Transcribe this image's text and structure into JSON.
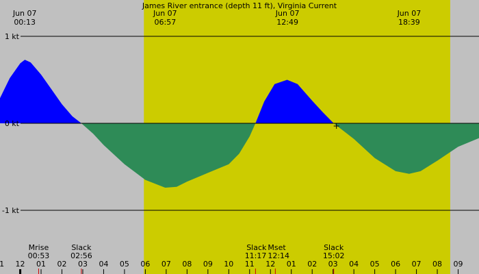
{
  "chart_data": {
    "type": "area",
    "title": "James River entrance (depth 11 ft), Virginia Current",
    "unit": "kt",
    "ylim": [
      -1.0,
      1.0
    ],
    "xlim_hours": [
      -0.97,
      22.0
    ],
    "y_ticks": [
      {
        "value": 1,
        "label": "1 kt"
      },
      {
        "value": 0,
        "label": "0 kt"
      },
      {
        "value": -1,
        "label": "-1 kt"
      }
    ],
    "daylight_hours": [
      5.93,
      20.62
    ],
    "top_labels": [
      {
        "date": "Jun 07",
        "time": "00:13",
        "hour": 0.217
      },
      {
        "date": "Jun 07",
        "time": "06:57",
        "hour": 6.95
      },
      {
        "date": "Jun 07",
        "time": "12:49",
        "hour": 12.817
      },
      {
        "date": "Jun 07",
        "time": "18:39",
        "hour": 18.65
      }
    ],
    "events": [
      {
        "name": "Mrise",
        "time": "00:53",
        "hour": 0.883
      },
      {
        "name": "Slack",
        "time": "02:56",
        "hour": 2.933
      },
      {
        "name": "Slack",
        "time": "11:17",
        "hour": 11.283
      },
      {
        "name": "Mset",
        "time": "12:14",
        "hour": 12.233
      },
      {
        "name": "Slack",
        "time": "15:02",
        "hour": 15.033
      }
    ],
    "hour_ticks": [
      {
        "label": "11",
        "hour": -1
      },
      {
        "label": "12",
        "hour": 0
      },
      {
        "label": "01",
        "hour": 1
      },
      {
        "label": "02",
        "hour": 2
      },
      {
        "label": "03",
        "hour": 3
      },
      {
        "label": "04",
        "hour": 4
      },
      {
        "label": "05",
        "hour": 5
      },
      {
        "label": "06",
        "hour": 6
      },
      {
        "label": "07",
        "hour": 7
      },
      {
        "label": "08",
        "hour": 8
      },
      {
        "label": "09",
        "hour": 9
      },
      {
        "label": "10",
        "hour": 10
      },
      {
        "label": "11",
        "hour": 11
      },
      {
        "label": "12",
        "hour": 12
      },
      {
        "label": "01",
        "hour": 13
      },
      {
        "label": "02",
        "hour": 14
      },
      {
        "label": "03",
        "hour": 15
      },
      {
        "label": "04",
        "hour": 16
      },
      {
        "label": "05",
        "hour": 17
      },
      {
        "label": "06",
        "hour": 18
      },
      {
        "label": "07",
        "hour": 19
      },
      {
        "label": "08",
        "hour": 20
      },
      {
        "label": "09",
        "hour": 21
      }
    ],
    "series": [
      {
        "flood_color": "#0000ff",
        "ebb_color": "#2e8b57",
        "points": [
          [
            -0.97,
            0.29
          ],
          [
            -0.5,
            0.52
          ],
          [
            0.0,
            0.69
          ],
          [
            0.22,
            0.73
          ],
          [
            0.5,
            0.7
          ],
          [
            1.0,
            0.56
          ],
          [
            1.5,
            0.39
          ],
          [
            2.0,
            0.22
          ],
          [
            2.5,
            0.08
          ],
          [
            2.93,
            0.0
          ],
          [
            3.5,
            -0.12
          ],
          [
            4.0,
            -0.25
          ],
          [
            5.0,
            -0.47
          ],
          [
            6.0,
            -0.65
          ],
          [
            6.95,
            -0.74
          ],
          [
            7.5,
            -0.73
          ],
          [
            8.0,
            -0.67
          ],
          [
            9.0,
            -0.57
          ],
          [
            10.0,
            -0.47
          ],
          [
            10.5,
            -0.35
          ],
          [
            11.0,
            -0.15
          ],
          [
            11.28,
            0.0
          ],
          [
            11.7,
            0.25
          ],
          [
            12.2,
            0.45
          ],
          [
            12.8,
            0.5
          ],
          [
            13.3,
            0.45
          ],
          [
            14.0,
            0.26
          ],
          [
            14.5,
            0.13
          ],
          [
            15.03,
            0.0
          ],
          [
            16.0,
            -0.18
          ],
          [
            17.0,
            -0.4
          ],
          [
            18.0,
            -0.55
          ],
          [
            18.65,
            -0.58
          ],
          [
            19.2,
            -0.55
          ],
          [
            20.0,
            -0.43
          ],
          [
            21.0,
            -0.27
          ],
          [
            22.0,
            -0.17
          ]
        ]
      }
    ]
  }
}
